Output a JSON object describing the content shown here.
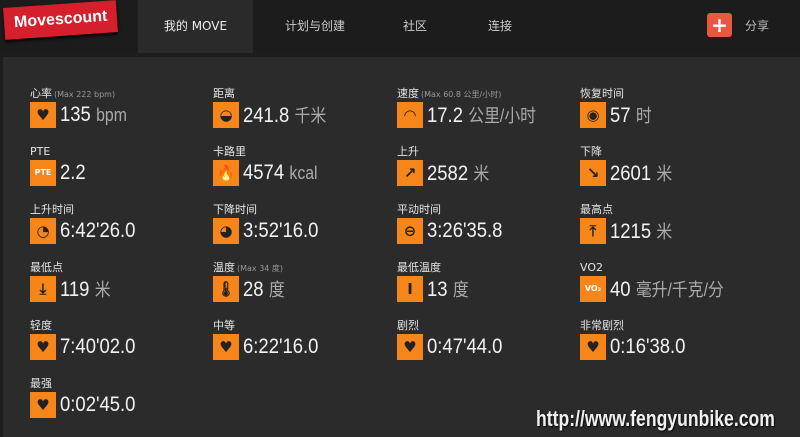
{
  "header": {
    "logo": "Movescount",
    "tabs": [
      {
        "label": "我的 MOVE",
        "active": true
      },
      {
        "label": "计划与创建"
      },
      {
        "label": "社区"
      },
      {
        "label": "连接"
      }
    ],
    "share_icon": "plus-icon",
    "share_label": "分享"
  },
  "colors": {
    "accent": "#f7861a",
    "logo": "#d51f2c",
    "share": "#e8573f"
  },
  "stats": [
    {
      "label": "心率",
      "note": "(Max 222 bpm)",
      "icon": "heart-icon",
      "glyph": "♥",
      "value": "135",
      "unit": "bpm"
    },
    {
      "label": "距离",
      "note": "",
      "icon": "tape-measure-icon",
      "glyph": "◒",
      "value": "241.8",
      "unit": "千米"
    },
    {
      "label": "速度",
      "note": "(Max 60.8 公里/小时)",
      "icon": "speedometer-icon",
      "glyph": "◠",
      "value": "17.2",
      "unit": "公里/小时"
    },
    {
      "label": "恢复时间",
      "note": "",
      "icon": "recovery-icon",
      "glyph": "◉",
      "value": "57",
      "unit": "时"
    },
    {
      "label": "PTE",
      "note": "",
      "icon": "pte-icon",
      "glyph": "PTE",
      "value": "2.2",
      "unit": ""
    },
    {
      "label": "卡路里",
      "note": "",
      "icon": "flame-icon",
      "glyph": "🔥",
      "value": "4574",
      "unit": "kcal"
    },
    {
      "label": "上升",
      "note": "",
      "icon": "arrow-up-right-icon",
      "glyph": "↗",
      "value": "2582",
      "unit": "米"
    },
    {
      "label": "下降",
      "note": "",
      "icon": "arrow-down-right-icon",
      "glyph": "↘",
      "value": "2601",
      "unit": "米"
    },
    {
      "label": "上升时间",
      "note": "",
      "icon": "ascent-time-icon",
      "glyph": "◔",
      "value": "6:42'26.0",
      "unit": ""
    },
    {
      "label": "下降时间",
      "note": "",
      "icon": "descent-time-icon",
      "glyph": "◕",
      "value": "3:52'16.0",
      "unit": ""
    },
    {
      "label": "平动时间",
      "note": "",
      "icon": "flat-time-icon",
      "glyph": "⊖",
      "value": "3:26'35.8",
      "unit": ""
    },
    {
      "label": "最高点",
      "note": "",
      "icon": "highest-point-icon",
      "glyph": "⤒",
      "value": "1215",
      "unit": "米"
    },
    {
      "label": "最低点",
      "note": "",
      "icon": "lowest-point-icon",
      "glyph": "⤓",
      "value": "119",
      "unit": "米"
    },
    {
      "label": "温度",
      "note": "(Max 34 度)",
      "icon": "thermometer-icon",
      "glyph": "🌡",
      "value": "28",
      "unit": "度"
    },
    {
      "label": "最低温度",
      "note": "",
      "icon": "min-temperature-icon",
      "glyph": "Ⅰ",
      "value": "13",
      "unit": "度"
    },
    {
      "label": "VO2",
      "note": "",
      "icon": "vo2-icon",
      "glyph": "VO₂",
      "value": "40",
      "unit": "毫升/千克/分"
    },
    {
      "label": "轻度",
      "note": "",
      "icon": "heart-zone-1-icon",
      "glyph": "♥",
      "value": "7:40'02.0",
      "unit": ""
    },
    {
      "label": "中等",
      "note": "",
      "icon": "heart-zone-2-icon",
      "glyph": "♥",
      "value": "6:22'16.0",
      "unit": ""
    },
    {
      "label": "剧烈",
      "note": "",
      "icon": "heart-zone-3-icon",
      "glyph": "♥",
      "value": "0:47'44.0",
      "unit": ""
    },
    {
      "label": "非常剧烈",
      "note": "",
      "icon": "heart-zone-4-icon",
      "glyph": "♥",
      "value": "0:16'38.0",
      "unit": ""
    },
    {
      "label": "最强",
      "note": "",
      "icon": "heart-zone-5-icon",
      "glyph": "♥",
      "value": "0:02'45.0",
      "unit": ""
    }
  ],
  "watermark": "http://www.fengyunbike.com"
}
